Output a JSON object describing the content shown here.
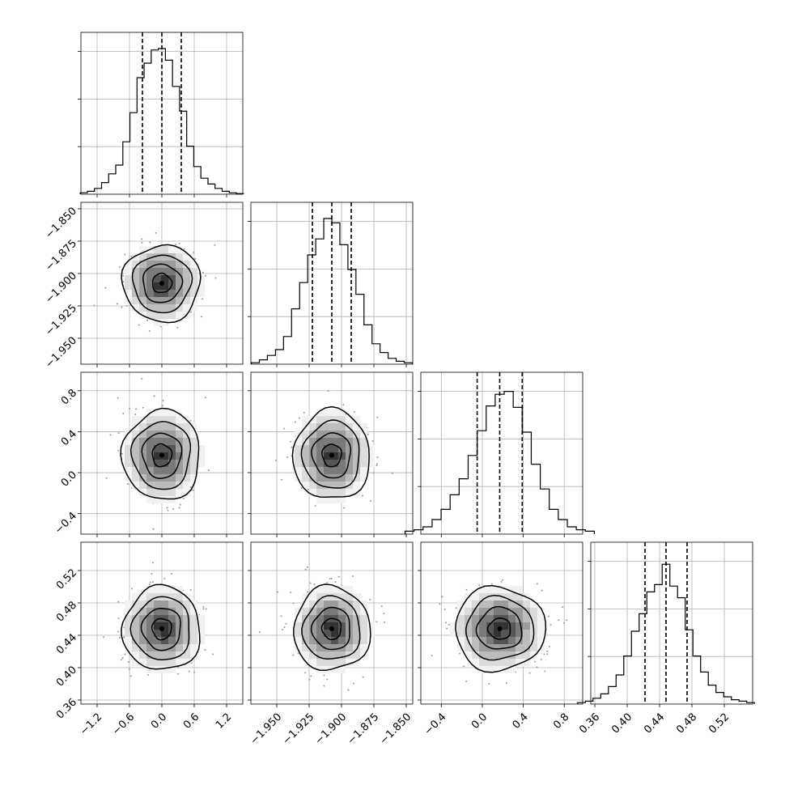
{
  "chart_data": {
    "type": "corner",
    "parameters": [
      {
        "center": 0.0,
        "sigma": 0.36,
        "range": [
          -1.5,
          1.5
        ],
        "ticks": [
          "−1.2",
          "−0.6",
          "0.0",
          "0.6",
          "1.2"
        ],
        "tick_values": [
          -1.2,
          -0.6,
          0.0,
          0.6,
          1.2
        ],
        "quantiles": [
          -0.36,
          0.0,
          0.36
        ]
      },
      {
        "center": -1.9075,
        "sigma": 0.0148,
        "range": [
          -1.97,
          -1.845
        ],
        "ticks": [
          "−1.950",
          "−1.925",
          "−1.900",
          "−1.875",
          "−1.850"
        ],
        "tick_values": [
          -1.95,
          -1.925,
          -1.9,
          -1.875,
          -1.85
        ],
        "quantiles": [
          -1.9225,
          -1.9075,
          -1.8925
        ]
      },
      {
        "center": 0.17,
        "sigma": 0.22,
        "range": [
          -0.6,
          0.98
        ],
        "ticks": [
          "−0.4",
          "0.0",
          "0.4",
          "0.8"
        ],
        "tick_values": [
          -0.4,
          0.0,
          0.4,
          0.8
        ],
        "quantiles": [
          -0.05,
          0.17,
          0.39
        ]
      },
      {
        "center": 0.448,
        "sigma": 0.026,
        "range": [
          0.355,
          0.555
        ],
        "ticks": [
          "0.36",
          "0.40",
          "0.44",
          "0.48",
          "0.52"
        ],
        "tick_values": [
          0.36,
          0.4,
          0.44,
          0.48,
          0.52
        ],
        "quantiles": [
          0.422,
          0.448,
          0.474
        ]
      }
    ],
    "histograms": [
      [
        0.01,
        0.02,
        0.04,
        0.08,
        0.14,
        0.2,
        0.36,
        0.56,
        0.8,
        0.9,
        0.99,
        1.0,
        0.92,
        0.74,
        0.57,
        0.33,
        0.19,
        0.11,
        0.07,
        0.04,
        0.02,
        0.01,
        0.004
      ],
      [
        0.01,
        0.03,
        0.06,
        0.1,
        0.19,
        0.38,
        0.56,
        0.75,
        0.86,
        1.0,
        0.97,
        0.82,
        0.65,
        0.48,
        0.27,
        0.14,
        0.08,
        0.04,
        0.02,
        0.01
      ],
      [
        0.02,
        0.03,
        0.05,
        0.1,
        0.17,
        0.27,
        0.38,
        0.54,
        0.71,
        0.88,
        0.96,
        0.98,
        0.87,
        0.7,
        0.48,
        0.31,
        0.17,
        0.1,
        0.05,
        0.03,
        0.02
      ],
      [
        0.01,
        0.02,
        0.04,
        0.07,
        0.12,
        0.2,
        0.33,
        0.5,
        0.62,
        0.77,
        0.82,
        0.96,
        0.81,
        0.73,
        0.51,
        0.33,
        0.22,
        0.13,
        0.08,
        0.05,
        0.03,
        0.02,
        0.01
      ]
    ],
    "contour_levels_sigma": [
      0.5,
      1.0,
      1.5,
      2.0
    ],
    "grid": true,
    "histogram_y_ticks": 3
  }
}
